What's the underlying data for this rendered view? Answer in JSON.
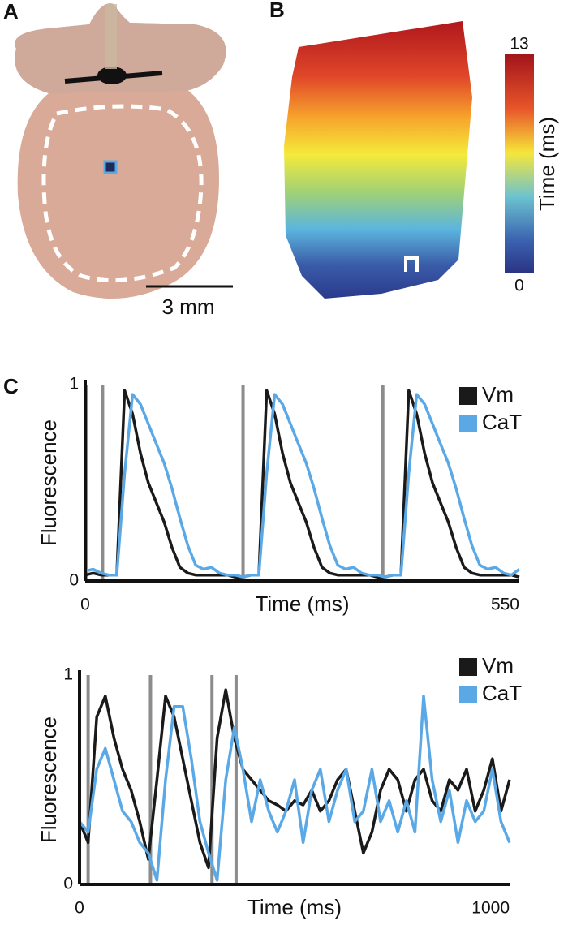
{
  "panels": {
    "a": {
      "label": "A",
      "scale_bar": "3 mm"
    },
    "b": {
      "label": "B",
      "colorbar": {
        "lim": [
          0,
          13
        ],
        "ticks": [
          0,
          13
        ],
        "label": "Time (ms)"
      }
    },
    "c": {
      "label": "C"
    }
  },
  "chart_data": [
    {
      "type": "line",
      "xlabel": "Time (ms)",
      "ylabel": "Fluorescence",
      "x": [
        0,
        10,
        20,
        30,
        40,
        50,
        60,
        70,
        80,
        90,
        100,
        110,
        120,
        130,
        140,
        150,
        160,
        170,
        180,
        190,
        200,
        210,
        220,
        230,
        240,
        250,
        260,
        270,
        280,
        290,
        300,
        310,
        320,
        330,
        340,
        350,
        360,
        370,
        380,
        390,
        400,
        410,
        420,
        430,
        440,
        450,
        460,
        470,
        480,
        490,
        500,
        510,
        520,
        530,
        540,
        550
      ],
      "series": [
        {
          "name": "Vm",
          "color": "#1a1a1a",
          "values": [
            0.03,
            0.04,
            0.03,
            0.03,
            0.03,
            0.97,
            0.85,
            0.65,
            0.5,
            0.4,
            0.3,
            0.17,
            0.07,
            0.04,
            0.03,
            0.03,
            0.03,
            0.03,
            0.03,
            0.02,
            0.02,
            0.03,
            0.03,
            0.97,
            0.85,
            0.65,
            0.5,
            0.4,
            0.3,
            0.17,
            0.07,
            0.04,
            0.03,
            0.03,
            0.03,
            0.03,
            0.03,
            0.02,
            0.02,
            0.03,
            0.03,
            0.97,
            0.85,
            0.65,
            0.5,
            0.4,
            0.3,
            0.17,
            0.07,
            0.04,
            0.03,
            0.03,
            0.03,
            0.03,
            0.03,
            0.02
          ]
        },
        {
          "name": "CaT",
          "color": "#5aa9e6",
          "values": [
            0.05,
            0.06,
            0.04,
            0.03,
            0.03,
            0.55,
            0.95,
            0.9,
            0.8,
            0.7,
            0.6,
            0.47,
            0.32,
            0.18,
            0.08,
            0.06,
            0.07,
            0.04,
            0.03,
            0.03,
            0.02,
            0.03,
            0.03,
            0.55,
            0.95,
            0.9,
            0.8,
            0.7,
            0.6,
            0.47,
            0.32,
            0.18,
            0.08,
            0.06,
            0.07,
            0.04,
            0.03,
            0.03,
            0.02,
            0.03,
            0.03,
            0.55,
            0.95,
            0.9,
            0.8,
            0.7,
            0.6,
            0.47,
            0.32,
            0.18,
            0.08,
            0.06,
            0.07,
            0.04,
            0.03,
            0.06
          ]
        }
      ],
      "markers": [
        1,
        22,
        200,
        377
      ],
      "marker_color": "#8c8c8c",
      "xlim": [
        0,
        550
      ],
      "ylim": [
        0,
        1
      ],
      "xticks": [
        0,
        550
      ],
      "yticks": [
        0,
        1
      ]
    },
    {
      "type": "line",
      "xlabel": "Time (ms)",
      "ylabel": "Fluorescence",
      "x": [
        0,
        20,
        40,
        60,
        80,
        100,
        120,
        140,
        160,
        180,
        200,
        220,
        240,
        260,
        280,
        300,
        320,
        340,
        360,
        380,
        400,
        420,
        440,
        460,
        480,
        500,
        520,
        540,
        560,
        580,
        600,
        620,
        640,
        660,
        680,
        700,
        720,
        740,
        760,
        780,
        800,
        820,
        840,
        860,
        880,
        900,
        920,
        940,
        960,
        980,
        1000
      ],
      "series": [
        {
          "name": "Vm",
          "color": "#1a1a1a",
          "values": [
            0.3,
            0.2,
            0.8,
            0.9,
            0.7,
            0.55,
            0.45,
            0.3,
            0.12,
            0.5,
            0.9,
            0.8,
            0.6,
            0.4,
            0.2,
            0.08,
            0.7,
            0.93,
            0.7,
            0.55,
            0.5,
            0.45,
            0.4,
            0.38,
            0.35,
            0.4,
            0.38,
            0.45,
            0.35,
            0.4,
            0.5,
            0.55,
            0.35,
            0.15,
            0.25,
            0.45,
            0.55,
            0.5,
            0.35,
            0.5,
            0.55,
            0.4,
            0.35,
            0.5,
            0.45,
            0.55,
            0.35,
            0.45,
            0.6,
            0.35,
            0.5
          ]
        },
        {
          "name": "CaT",
          "color": "#5aa9e6",
          "values": [
            0.3,
            0.25,
            0.55,
            0.65,
            0.5,
            0.35,
            0.3,
            0.2,
            0.15,
            0.02,
            0.5,
            0.85,
            0.85,
            0.6,
            0.3,
            0.15,
            0.02,
            0.5,
            0.75,
            0.55,
            0.3,
            0.5,
            0.35,
            0.25,
            0.35,
            0.5,
            0.2,
            0.45,
            0.55,
            0.3,
            0.45,
            0.55,
            0.3,
            0.35,
            0.55,
            0.3,
            0.4,
            0.25,
            0.4,
            0.25,
            0.9,
            0.5,
            0.3,
            0.45,
            0.2,
            0.4,
            0.3,
            0.35,
            0.55,
            0.3,
            0.2
          ]
        }
      ],
      "markers": [
        20,
        165,
        308,
        364
      ],
      "marker_color": "#8c8c8c",
      "xlim": [
        0,
        1000
      ],
      "ylim": [
        0,
        1
      ],
      "xticks": [
        0,
        1000
      ],
      "yticks": [
        0,
        1
      ]
    }
  ]
}
